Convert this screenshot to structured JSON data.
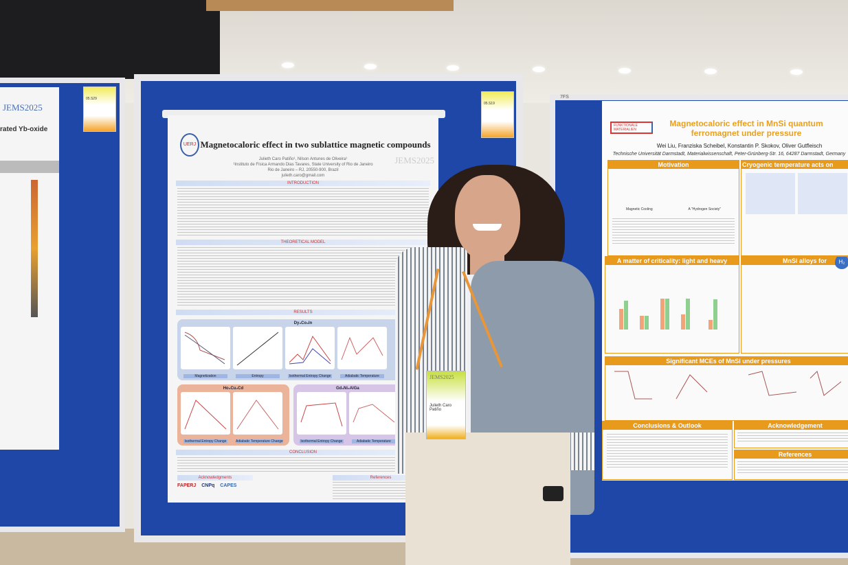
{
  "scene": {
    "colors": {
      "board": "#1e47a8",
      "orange": "#e89a1d",
      "jacket": "#8d9bab",
      "hair": "#2a1c17"
    }
  },
  "left_poster": {
    "logo": "JEMS2025",
    "title_fragment": "rated Yb-oxide",
    "tag": "05.S29"
  },
  "middle_poster": {
    "title": "Magnetocaloric effect in two sublattice magnetic compounds",
    "authors": "Julieth Caro Patiño¹, Nilson Antunes de Oliveira¹",
    "affiliation": "¹Instituto de Física Armando Dias Tavares, State University of Rio de Janeiro",
    "address": "Rio de Janeiro – RJ, 20550-900, Brazil",
    "email": "julieth.caro@gmail.com",
    "logo": "JEMS2025",
    "tag": "05.S19",
    "sections": {
      "intro": "INTRODUCTION",
      "model": "THEORETICAL MODEL",
      "results": "RESULTS",
      "conclusion": "CONCLUSION",
      "ack": "Acknowledgments",
      "refs": "References"
    },
    "groups": [
      {
        "title": "Dy₃Co₃In",
        "captions": [
          "Magnetization",
          "Entropy",
          "Isothermal Entropy Change",
          "Adiabatic Temperature"
        ]
      },
      {
        "title": "Ho₃Cu₂Cd",
        "captions": [
          "Isothermal Entropy Change",
          "Adiabatic Temperature Change"
        ]
      },
      {
        "title": "Gd₃Ni₂AlGa",
        "captions": [
          "Isothermal Entropy Change",
          "Adiabatic Temperature"
        ]
      }
    ],
    "sponsors": [
      "FAPERJ",
      "CNPq",
      "CAPES"
    ]
  },
  "right_poster": {
    "logo": "FUNKTIONALE MATERIALIEN",
    "title": "Magnetocaloric effect in MnSi quantum ferromagnet under pressure",
    "authors": "Wei Liu, Franziska Scheibel, Konstantin P. Skokov, Oliver Gutfleisch",
    "affiliation": "Technische Universität Darmstadt, Materialwissenschaft, Peter-Grünberg-Str. 16, 64287 Darmstadt, Germany",
    "sections": {
      "motivation": "Motivation",
      "cryogenic": "Cryogenic temperature acts on",
      "criticality": "A matter of criticality: light and heavy",
      "alloys": "MnSi alloys for",
      "significant": "Significant MCEs of MnSi under pressures",
      "conclusions": "Conclusions & Outlook",
      "ack": "Acknowledgement",
      "refs": "References"
    },
    "motivation_labels": [
      "Magnetic Cooling",
      "A \"Hydrogen Society\""
    ],
    "h2_badge": "H₂",
    "tag": "7FS"
  },
  "person": {
    "badge_logo": "JEMS2025",
    "badge_name": "Julieth Caro Patiño"
  }
}
